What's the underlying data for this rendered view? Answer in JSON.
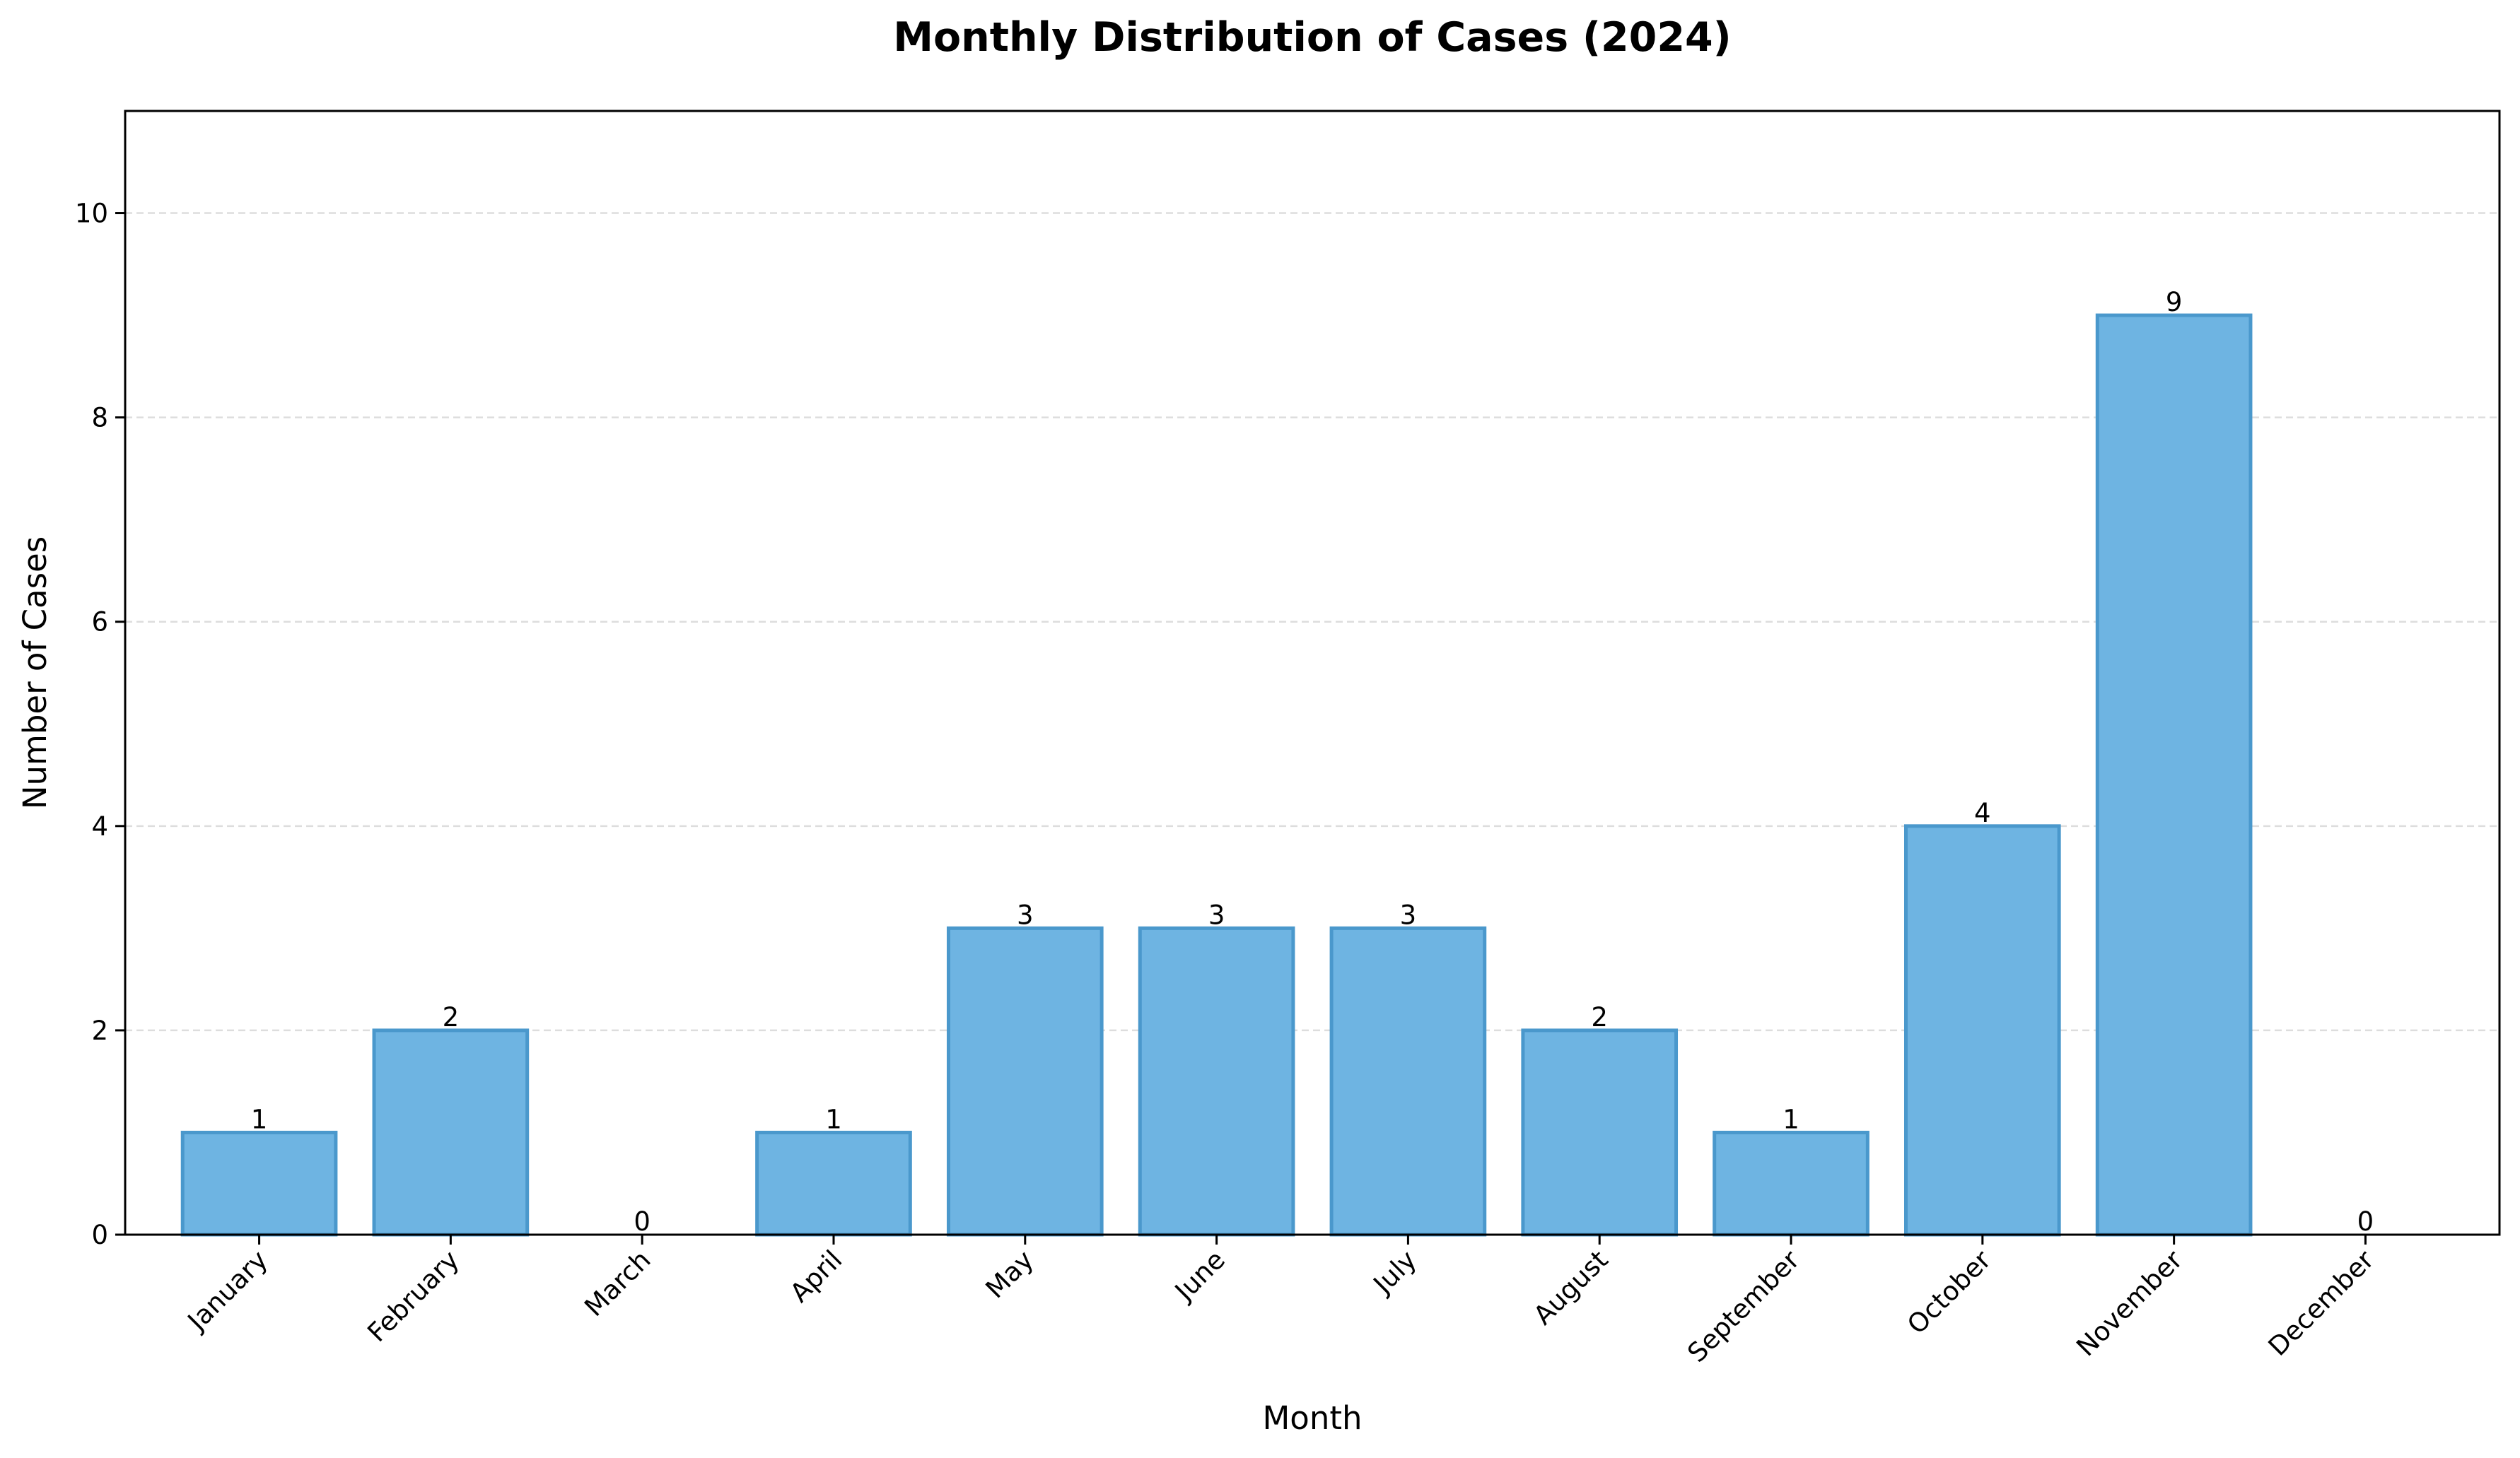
{
  "chart_data": {
    "type": "bar",
    "title": "Monthly Distribution of Cases (2024)",
    "xlabel": "Month",
    "ylabel": "Number of Cases",
    "categories": [
      "January",
      "February",
      "March",
      "April",
      "May",
      "June",
      "July",
      "August",
      "September",
      "October",
      "November",
      "December"
    ],
    "values": [
      1,
      2,
      0,
      1,
      3,
      3,
      3,
      2,
      1,
      4,
      9,
      0
    ],
    "ylim": [
      0,
      11
    ],
    "yticks": [
      0,
      2,
      4,
      6,
      8,
      10
    ],
    "grid": "y-dashed",
    "legend": "none",
    "colors": {
      "bar_fill": "#6eb4e2",
      "bar_edge": "#4a98cc",
      "grid": "#dddddd",
      "axis": "#000000"
    }
  }
}
